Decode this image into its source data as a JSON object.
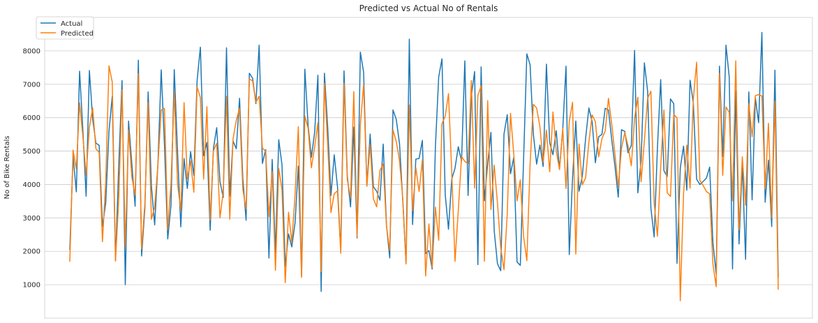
{
  "chart_data": {
    "type": "line",
    "title": "Predicted vs Actual No of Rentals",
    "xlabel": "",
    "ylabel": "No of Bike Rentals",
    "ylim": [
      0,
      9000
    ],
    "yticks": [
      1000,
      2000,
      3000,
      4000,
      5000,
      6000,
      7000,
      8000
    ],
    "grid": true,
    "legend": "top-left",
    "series": [
      {
        "name": "Actual",
        "color": "#1f77b4",
        "values": [
          2040,
          4850,
          3780,
          7390,
          5640,
          3650,
          7410,
          5960,
          5240,
          5170,
          2740,
          3440,
          5590,
          6640,
          1720,
          4580,
          7110,
          1000,
          5900,
          4620,
          3350,
          7720,
          1860,
          3290,
          6770,
          3950,
          2790,
          4620,
          7430,
          5190,
          2370,
          3380,
          7440,
          4980,
          2730,
          4780,
          3880,
          4980,
          4270,
          7120,
          8110,
          4860,
          5260,
          2630,
          5080,
          5700,
          4090,
          3610,
          8090,
          3650,
          5300,
          5070,
          6580,
          4180,
          2930,
          7330,
          7180,
          6420,
          8170,
          4630,
          5040,
          1800,
          4750,
          1960,
          5340,
          4590,
          1550,
          2520,
          2130,
          2850,
          4550,
          1260,
          7450,
          5770,
          4810,
          5560,
          7270,
          800,
          7330,
          5700,
          3670,
          4890,
          3930,
          2050,
          7400,
          4260,
          3330,
          5720,
          2400,
          7960,
          7360,
          3950,
          5510,
          3930,
          3800,
          3530,
          5210,
          2790,
          1800,
          6230,
          5950,
          5220,
          3510,
          1640,
          8350,
          2800,
          4760,
          4780,
          5320,
          1930,
          2020,
          1470,
          5150,
          7220,
          7760,
          3700,
          2660,
          4160,
          4490,
          5130,
          4700,
          7700,
          3670,
          6650,
          7380,
          1600,
          7520,
          3510,
          4620,
          5560,
          2620,
          1630,
          1420,
          5510,
          6090,
          4320,
          4810,
          1680,
          1580,
          4750,
          7910,
          7580,
          5500,
          4610,
          5180,
          4540,
          7600,
          5250,
          4890,
          5610,
          4450,
          5650,
          7540,
          1900,
          4190,
          5900,
          3800,
          4250,
          5380,
          6290,
          5880,
          4650,
          5430,
          5500,
          6280,
          6230,
          5340,
          4540,
          3620,
          5640,
          5590,
          4950,
          5170,
          8010,
          3750,
          4710,
          7640,
          6790,
          3290,
          2430,
          5100,
          7140,
          4410,
          4240,
          6560,
          6420,
          1640,
          4490,
          5150,
          3830,
          7120,
          6430,
          4160,
          4000,
          4090,
          4190,
          4520,
          2250,
          1320,
          7540,
          4840,
          8170,
          7210,
          1470,
          6800,
          2220,
          4620,
          1760,
          6770,
          3540,
          6590,
          5850,
          8550,
          3470,
          4730,
          2740,
          7420,
          1210
        ]
      },
      {
        "name": "Predicted",
        "color": "#ff7f0e",
        "values": [
          1690,
          5030,
          4470,
          6440,
          5440,
          4280,
          5710,
          6290,
          5070,
          4960,
          2290,
          4050,
          7550,
          7070,
          1710,
          3580,
          6830,
          2130,
          5630,
          4230,
          3680,
          7320,
          2070,
          3440,
          6450,
          2960,
          3320,
          4600,
          6230,
          6280,
          2650,
          4040,
          6760,
          4020,
          3230,
          6450,
          4170,
          4700,
          3770,
          6920,
          6600,
          4160,
          6330,
          2930,
          5010,
          5230,
          3000,
          3790,
          6640,
          2960,
          5360,
          5920,
          6280,
          3860,
          3260,
          7160,
          7100,
          6460,
          6640,
          5090,
          5000,
          3040,
          4390,
          1430,
          4480,
          3850,
          1060,
          3170,
          2260,
          3680,
          5730,
          1220,
          6050,
          5680,
          4500,
          5120,
          5850,
          1390,
          7030,
          5190,
          3160,
          3720,
          3810,
          1940,
          7030,
          4150,
          3600,
          6780,
          2430,
          5780,
          6990,
          3950,
          5200,
          3570,
          3330,
          4420,
          4610,
          2750,
          2030,
          5630,
          5290,
          4710,
          3580,
          1620,
          6380,
          3210,
          4500,
          3790,
          4740,
          1260,
          2820,
          1510,
          3320,
          2330,
          5820,
          6040,
          6720,
          4360,
          1700,
          3220,
          4840,
          4690,
          4620,
          7110,
          3890,
          6670,
          6950,
          1700,
          6510,
          3250,
          4580,
          3450,
          2110,
          1450,
          3120,
          6130,
          4900,
          3510,
          4140,
          2450,
          1720,
          4620,
          6400,
          6290,
          5730,
          4670,
          5630,
          4380,
          6170,
          5010,
          4450,
          5680,
          3880,
          5890,
          6460,
          1920,
          5210,
          3990,
          4200,
          5270,
          6080,
          5880,
          4830,
          5370,
          5600,
          6580,
          5810,
          4890,
          3930,
          5090,
          5550,
          5150,
          4560,
          5980,
          6610,
          4080,
          5300,
          6580,
          6790,
          3450,
          2450,
          4520,
          6230,
          3750,
          3640,
          6100,
          5990,
          520,
          3720,
          5180,
          3890,
          6560,
          7660,
          4120,
          3970,
          3790,
          3720,
          1620,
          940,
          7330,
          4270,
          6320,
          6160,
          3510,
          7700,
          2640,
          4830,
          3380,
          6420,
          5430,
          6660,
          6690,
          6650,
          3880,
          5830,
          3010,
          6490,
          850
        ]
      }
    ]
  }
}
